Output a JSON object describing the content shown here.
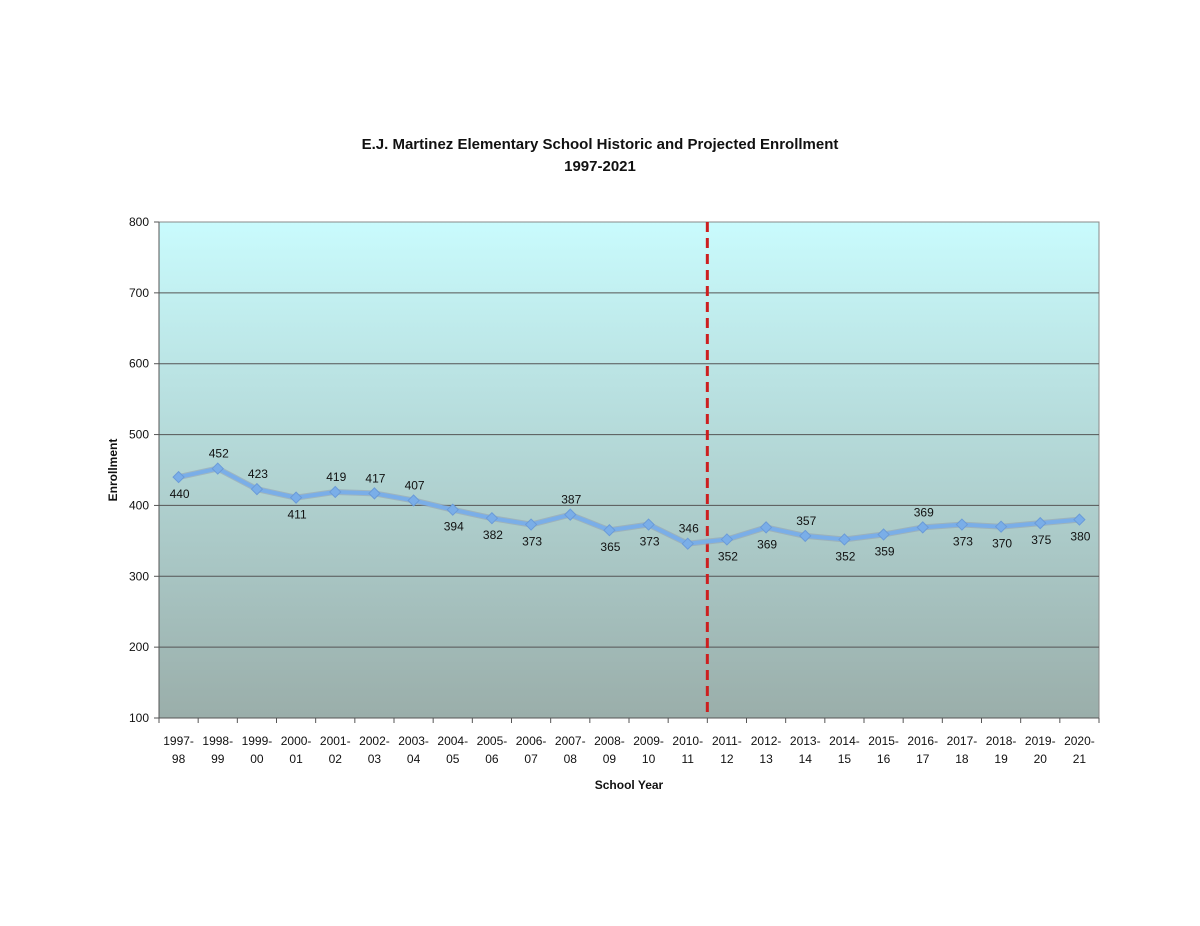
{
  "chart_data": {
    "type": "line",
    "title": "E.J. Martinez Elementary School Historic and Projected Enrollment",
    "subtitle": "1997-2021",
    "xlabel": "School Year",
    "ylabel": "Enrollment",
    "ylim": [
      100,
      800
    ],
    "yticks": [
      100,
      200,
      300,
      400,
      500,
      600,
      700,
      800
    ],
    "grid": true,
    "legend": "none",
    "categories": [
      [
        "1997-",
        "98"
      ],
      [
        "1998-",
        "99"
      ],
      [
        "1999-",
        "00"
      ],
      [
        "2000-",
        "01"
      ],
      [
        "2001-",
        "02"
      ],
      [
        "2002-",
        "03"
      ],
      [
        "2003-",
        "04"
      ],
      [
        "2004-",
        "05"
      ],
      [
        "2005-",
        "06"
      ],
      [
        "2006-",
        "07"
      ],
      [
        "2007-",
        "08"
      ],
      [
        "2008-",
        "09"
      ],
      [
        "2009-",
        "10"
      ],
      [
        "2010-",
        "11"
      ],
      [
        "2011-",
        "12"
      ],
      [
        "2012-",
        "13"
      ],
      [
        "2013-",
        "14"
      ],
      [
        "2014-",
        "15"
      ],
      [
        "2015-",
        "16"
      ],
      [
        "2016-",
        "17"
      ],
      [
        "2017-",
        "18"
      ],
      [
        "2018-",
        "19"
      ],
      [
        "2019-",
        "20"
      ],
      [
        "2020-",
        "21"
      ]
    ],
    "series": [
      {
        "values": [
          440,
          452,
          423,
          411,
          419,
          417,
          407,
          394,
          382,
          373,
          387,
          365,
          373,
          346,
          352,
          369,
          357,
          352,
          359,
          369,
          373,
          370,
          375,
          380
        ],
        "label_position": [
          "below",
          "above",
          "above",
          "below",
          "above",
          "above",
          "above",
          "below",
          "below",
          "below",
          "above",
          "below",
          "below",
          "above",
          "below",
          "below",
          "above",
          "below",
          "below",
          "above",
          "below",
          "below",
          "below",
          "below"
        ]
      }
    ],
    "divider": {
      "between": [
        "2010-11",
        "2011-12"
      ],
      "style": "dashed",
      "color": "#cc1f1f"
    },
    "colors": {
      "line": "#7aaee8",
      "marker": "#7aaee8",
      "plot_bg_top": "#c9fbfd",
      "plot_bg_bottom": "#9aaeaa",
      "gridline": "#555555",
      "divider": "#cc1f1f"
    }
  }
}
